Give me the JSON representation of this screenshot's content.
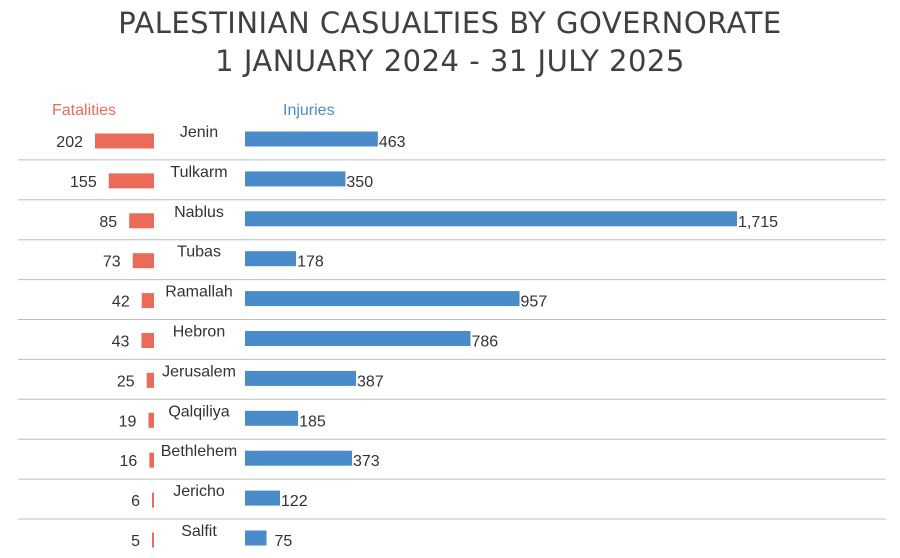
{
  "chart_data": {
    "type": "bar",
    "title": "PALESTINIAN CASUALTIES BY GOVERNORATE",
    "subtitle": "1 JANUARY 2024 - 31 JULY 2025",
    "categories": [
      "Jenin",
      "Tulkarm",
      "Nablus",
      "Tubas",
      "Ramallah",
      "Hebron",
      "Jerusalem",
      "Qalqiliya",
      "Bethlehem",
      "Jericho",
      "Salfit"
    ],
    "series": [
      {
        "name": "Fatalities",
        "color": "#ea6b5a",
        "values": [
          202,
          155,
          85,
          73,
          42,
          43,
          25,
          19,
          16,
          6,
          5
        ],
        "labels": [
          "202",
          "155",
          "85",
          "73",
          "42",
          "43",
          "25",
          "19",
          "16",
          "6",
          "5"
        ]
      },
      {
        "name": "Injuries",
        "color": "#4a8cc9",
        "values": [
          463,
          350,
          1715,
          178,
          957,
          786,
          387,
          185,
          373,
          122,
          75
        ],
        "labels": [
          "463",
          "350",
          "1,715",
          "178",
          "957",
          "786",
          "387",
          "185",
          "373",
          "122",
          "75"
        ]
      }
    ],
    "orientation": "horizontal-diverging",
    "grid": "horizontal separators"
  }
}
